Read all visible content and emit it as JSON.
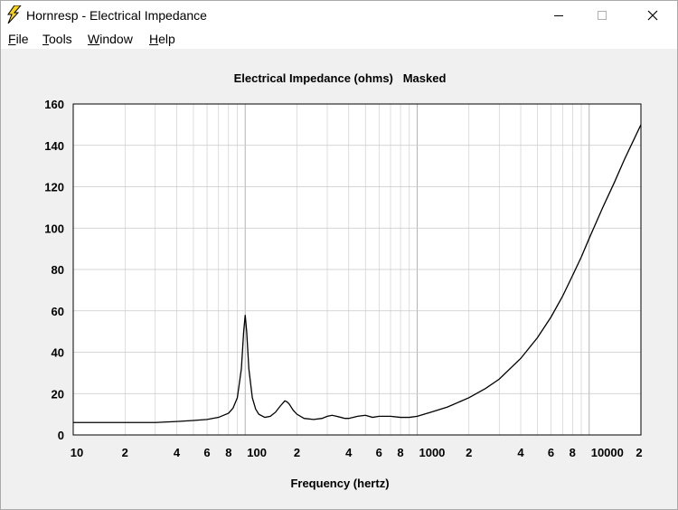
{
  "window": {
    "title": "Hornresp - Electrical Impedance",
    "icon": "lightning-bolt-icon"
  },
  "menu": {
    "items": [
      {
        "label": "File",
        "mnemonic": "F",
        "rest": "ile"
      },
      {
        "label": "Tools",
        "mnemonic": "T",
        "rest": "ools"
      },
      {
        "label": "Window",
        "mnemonic": "W",
        "rest": "indow"
      },
      {
        "label": "Help",
        "mnemonic": "H",
        "rest": "elp"
      }
    ]
  },
  "colors": {
    "window_bg": "#f0f0f0",
    "plot_bg": "#ffffff",
    "grid": "#c8c8c8",
    "curve": "#000000",
    "icon_yellow": "#f7d417"
  },
  "chart_data": {
    "type": "line",
    "title": "Electrical Impedance (ohms)   Masked",
    "xlabel": "Frequency (hertz)",
    "ylabel": "",
    "x_scale": "log",
    "xlim": [
      10,
      20000
    ],
    "ylim": [
      0,
      160
    ],
    "grid": true,
    "y_ticks": [
      0,
      20,
      40,
      60,
      80,
      100,
      120,
      140,
      160
    ],
    "y_tick_labels": [
      "0",
      "20",
      "40",
      "60",
      "80",
      "100",
      "120",
      "140",
      "160"
    ],
    "x_tick_labels": [
      {
        "value": 10,
        "label": "10"
      },
      {
        "value": 20,
        "label": "2"
      },
      {
        "value": 40,
        "label": "4"
      },
      {
        "value": 60,
        "label": "6"
      },
      {
        "value": 80,
        "label": "8"
      },
      {
        "value": 100,
        "label": "100"
      },
      {
        "value": 200,
        "label": "2"
      },
      {
        "value": 400,
        "label": "4"
      },
      {
        "value": 600,
        "label": "6"
      },
      {
        "value": 800,
        "label": "8"
      },
      {
        "value": 1000,
        "label": "1000"
      },
      {
        "value": 2000,
        "label": "2"
      },
      {
        "value": 4000,
        "label": "4"
      },
      {
        "value": 6000,
        "label": "6"
      },
      {
        "value": 8000,
        "label": "8"
      },
      {
        "value": 10000,
        "label": "10000"
      },
      {
        "value": 20000,
        "label": "2"
      }
    ],
    "series": [
      {
        "x": [
          10,
          20,
          30,
          40,
          50,
          60,
          70,
          80,
          85,
          90,
          95,
          98,
          100,
          102,
          105,
          110,
          115,
          120,
          130,
          140,
          150,
          160,
          170,
          175,
          180,
          190,
          200,
          220,
          250,
          280,
          300,
          320,
          340,
          360,
          380,
          400,
          450,
          500,
          550,
          600,
          700,
          800,
          900,
          1000,
          1200,
          1500,
          2000,
          2500,
          3000,
          4000,
          5000,
          6000,
          7000,
          8000,
          9000,
          10000,
          12000,
          14000,
          16000,
          18000,
          20000
        ],
        "y": [
          6,
          6,
          6,
          6.5,
          7,
          7.5,
          8.5,
          10.5,
          13,
          18,
          32,
          50,
          58,
          50,
          32,
          18,
          12.5,
          10,
          8.5,
          9,
          11,
          14,
          16.5,
          16,
          15,
          12,
          10,
          8,
          7.5,
          8,
          9,
          9.5,
          9,
          8.5,
          8,
          8,
          9,
          9.5,
          8.5,
          9,
          9,
          8.5,
          8.5,
          9,
          11,
          13.5,
          18,
          22.5,
          27,
          37,
          47,
          57,
          67,
          77,
          86,
          95,
          110,
          122,
          133,
          142,
          150
        ]
      }
    ]
  }
}
